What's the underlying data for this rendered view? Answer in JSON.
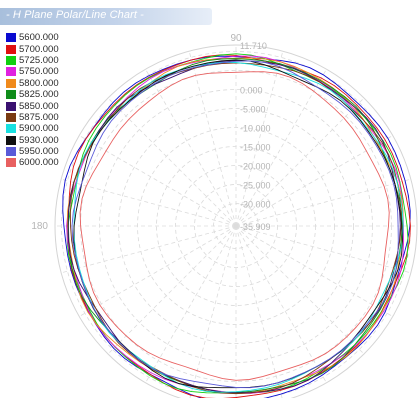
{
  "window": {
    "title": "- H Plane Polar/Line Chart -"
  },
  "chart_data": {
    "type": "polar-line",
    "title": "",
    "radial_axis": {
      "max": 11.71,
      "min": -35.909,
      "tick_labels": [
        "11.710",
        "0.000",
        "-5.000",
        "-10.000",
        "-15.000",
        "-20.000",
        "-25.000",
        "-30.000",
        "-35.909"
      ],
      "tick_values": [
        11.71,
        0,
        -5,
        -10,
        -15,
        -20,
        -25,
        -30,
        -35.909
      ],
      "gridline_values": [
        -30,
        -25,
        -20,
        -15,
        -10,
        -5,
        0,
        5,
        10
      ]
    },
    "angular_axis": {
      "visible_labels": [
        {
          "angle": 90,
          "label": "90"
        },
        {
          "angle": 180,
          "label": "180"
        }
      ],
      "spoke_step_degrees": 15
    },
    "grid": true,
    "legend_position": "top-left",
    "series": [
      {
        "name": "5600.000",
        "color": "#0a0ad0",
        "level": 9.6,
        "amp": 0.6
      },
      {
        "name": "5700.000",
        "color": "#e01010",
        "level": 9.1,
        "amp": 0.55
      },
      {
        "name": "5725.000",
        "color": "#10d010",
        "level": 8.7,
        "amp": 0.6
      },
      {
        "name": "5750.000",
        "color": "#e020e0",
        "level": 8.4,
        "amp": 0.5
      },
      {
        "name": "5800.000",
        "color": "#f08a1c",
        "level": 8.2,
        "amp": 0.55
      },
      {
        "name": "5825.000",
        "color": "#0f8c1a",
        "level": 8.0,
        "amp": 0.5
      },
      {
        "name": "5850.000",
        "color": "#3a1070",
        "level": 7.8,
        "amp": 0.6
      },
      {
        "name": "5875.000",
        "color": "#7a3a12",
        "level": 7.6,
        "amp": 0.5
      },
      {
        "name": "5900.000",
        "color": "#18e0e0",
        "level": 7.4,
        "amp": 0.55
      },
      {
        "name": "5930.000",
        "color": "#101010",
        "level": 7.2,
        "amp": 0.6
      },
      {
        "name": "5950.000",
        "color": "#5a5ad8",
        "level": 7.0,
        "amp": 0.5
      },
      {
        "name": "6000.000",
        "color": "#e86060",
        "level": 4.6,
        "amp": 0.7
      }
    ]
  }
}
